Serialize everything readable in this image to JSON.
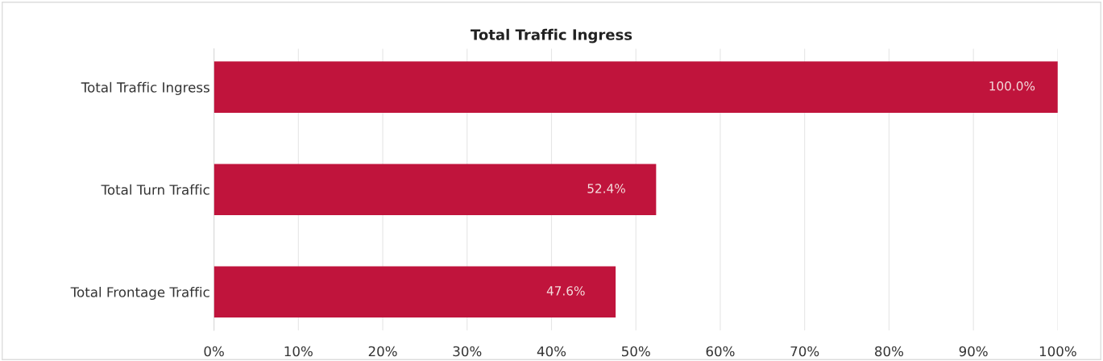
{
  "chart_data": {
    "type": "bar",
    "orientation": "horizontal",
    "title": "Total Traffic Ingress",
    "categories": [
      "Total Traffic Ingress",
      "Total Turn Traffic",
      "Total Frontage Traffic"
    ],
    "values": [
      100.0,
      52.4,
      47.6
    ],
    "color": "#c0143c",
    "value_labels": [
      "100.0%",
      "52.4%",
      "47.6%"
    ],
    "xlim": [
      0,
      100
    ],
    "xticks": [
      {
        "value": 0,
        "label": "0%"
      },
      {
        "value": 10,
        "label": "10%"
      },
      {
        "value": 20,
        "label": "20%"
      },
      {
        "value": 30,
        "label": "30%"
      },
      {
        "value": 40,
        "label": "40%"
      },
      {
        "value": 50,
        "label": "50%"
      },
      {
        "value": 60,
        "label": "60%"
      },
      {
        "value": 70,
        "label": "70%"
      },
      {
        "value": 80,
        "label": "80%"
      },
      {
        "value": 90,
        "label": "90%"
      },
      {
        "value": 100,
        "label": "100%"
      }
    ],
    "grid": "x",
    "legend": false
  }
}
